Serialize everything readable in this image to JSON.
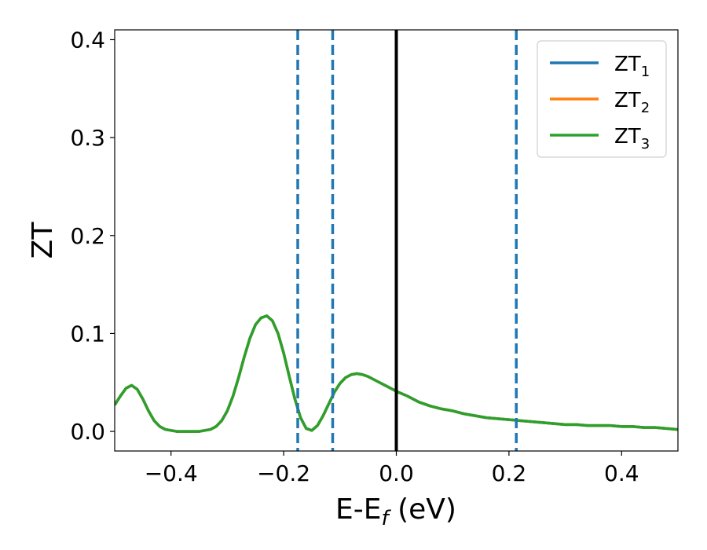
{
  "chart_data": {
    "type": "line",
    "xlabel": "E-E",
    "xlabel_sub": "f",
    "xlabel_unit": " (eV)",
    "ylabel": "ZT",
    "xlim": [
      -0.5,
      0.5
    ],
    "ylim": [
      -0.02,
      0.41
    ],
    "xticks": [
      -0.4,
      -0.2,
      0.0,
      0.2,
      0.4
    ],
    "xtick_labels": [
      "−0.4",
      "−0.2",
      "0.0",
      "0.2",
      "0.4"
    ],
    "yticks": [
      0.0,
      0.1,
      0.2,
      0.3,
      0.4
    ],
    "ytick_labels": [
      "0.0",
      "0.1",
      "0.2",
      "0.3",
      "0.4"
    ],
    "legend_position": "top-right",
    "series": [
      {
        "name": "ZT",
        "sub": "1",
        "color": "#1f77b4",
        "curve": "shared"
      },
      {
        "name": "ZT",
        "sub": "2",
        "color": "#ff7f0e",
        "curve": "shared"
      },
      {
        "name": "ZT",
        "sub": "3",
        "color": "#2ca02c",
        "curve": "shared"
      }
    ],
    "x": [
      -0.5,
      -0.49,
      -0.48,
      -0.47,
      -0.46,
      -0.45,
      -0.44,
      -0.43,
      -0.42,
      -0.41,
      -0.4,
      -0.39,
      -0.38,
      -0.37,
      -0.36,
      -0.35,
      -0.34,
      -0.33,
      -0.32,
      -0.31,
      -0.3,
      -0.29,
      -0.28,
      -0.27,
      -0.26,
      -0.25,
      -0.24,
      -0.23,
      -0.22,
      -0.21,
      -0.2,
      -0.19,
      -0.18,
      -0.17,
      -0.16,
      -0.15,
      -0.14,
      -0.13,
      -0.12,
      -0.11,
      -0.1,
      -0.09,
      -0.08,
      -0.07,
      -0.06,
      -0.05,
      -0.04,
      -0.03,
      -0.02,
      -0.01,
      0.0,
      0.02,
      0.04,
      0.06,
      0.08,
      0.1,
      0.12,
      0.14,
      0.16,
      0.18,
      0.2,
      0.22,
      0.24,
      0.26,
      0.28,
      0.3,
      0.32,
      0.34,
      0.36,
      0.38,
      0.4,
      0.42,
      0.44,
      0.46,
      0.48,
      0.5
    ],
    "y": [
      0.027,
      0.036,
      0.044,
      0.047,
      0.043,
      0.033,
      0.021,
      0.011,
      0.005,
      0.002,
      0.001,
      0.0,
      0.0,
      0.0,
      0.0,
      0.0,
      0.001,
      0.002,
      0.005,
      0.011,
      0.021,
      0.036,
      0.055,
      0.076,
      0.095,
      0.109,
      0.116,
      0.118,
      0.113,
      0.1,
      0.08,
      0.056,
      0.033,
      0.014,
      0.003,
      0.001,
      0.006,
      0.016,
      0.028,
      0.04,
      0.049,
      0.055,
      0.058,
      0.059,
      0.058,
      0.056,
      0.053,
      0.05,
      0.047,
      0.044,
      0.041,
      0.036,
      0.03,
      0.026,
      0.023,
      0.021,
      0.018,
      0.016,
      0.014,
      0.013,
      0.012,
      0.011,
      0.01,
      0.009,
      0.008,
      0.007,
      0.007,
      0.006,
      0.006,
      0.006,
      0.005,
      0.005,
      0.004,
      0.004,
      0.003,
      0.002
    ],
    "vlines": [
      {
        "x": 0.0,
        "style": "solid",
        "color": "#000000"
      },
      {
        "x": -0.175,
        "style": "dashed",
        "color": "#1f77b4"
      },
      {
        "x": -0.113,
        "style": "dashed",
        "color": "#1f77b4"
      },
      {
        "x": 0.213,
        "style": "dashed",
        "color": "#1f77b4"
      }
    ]
  }
}
